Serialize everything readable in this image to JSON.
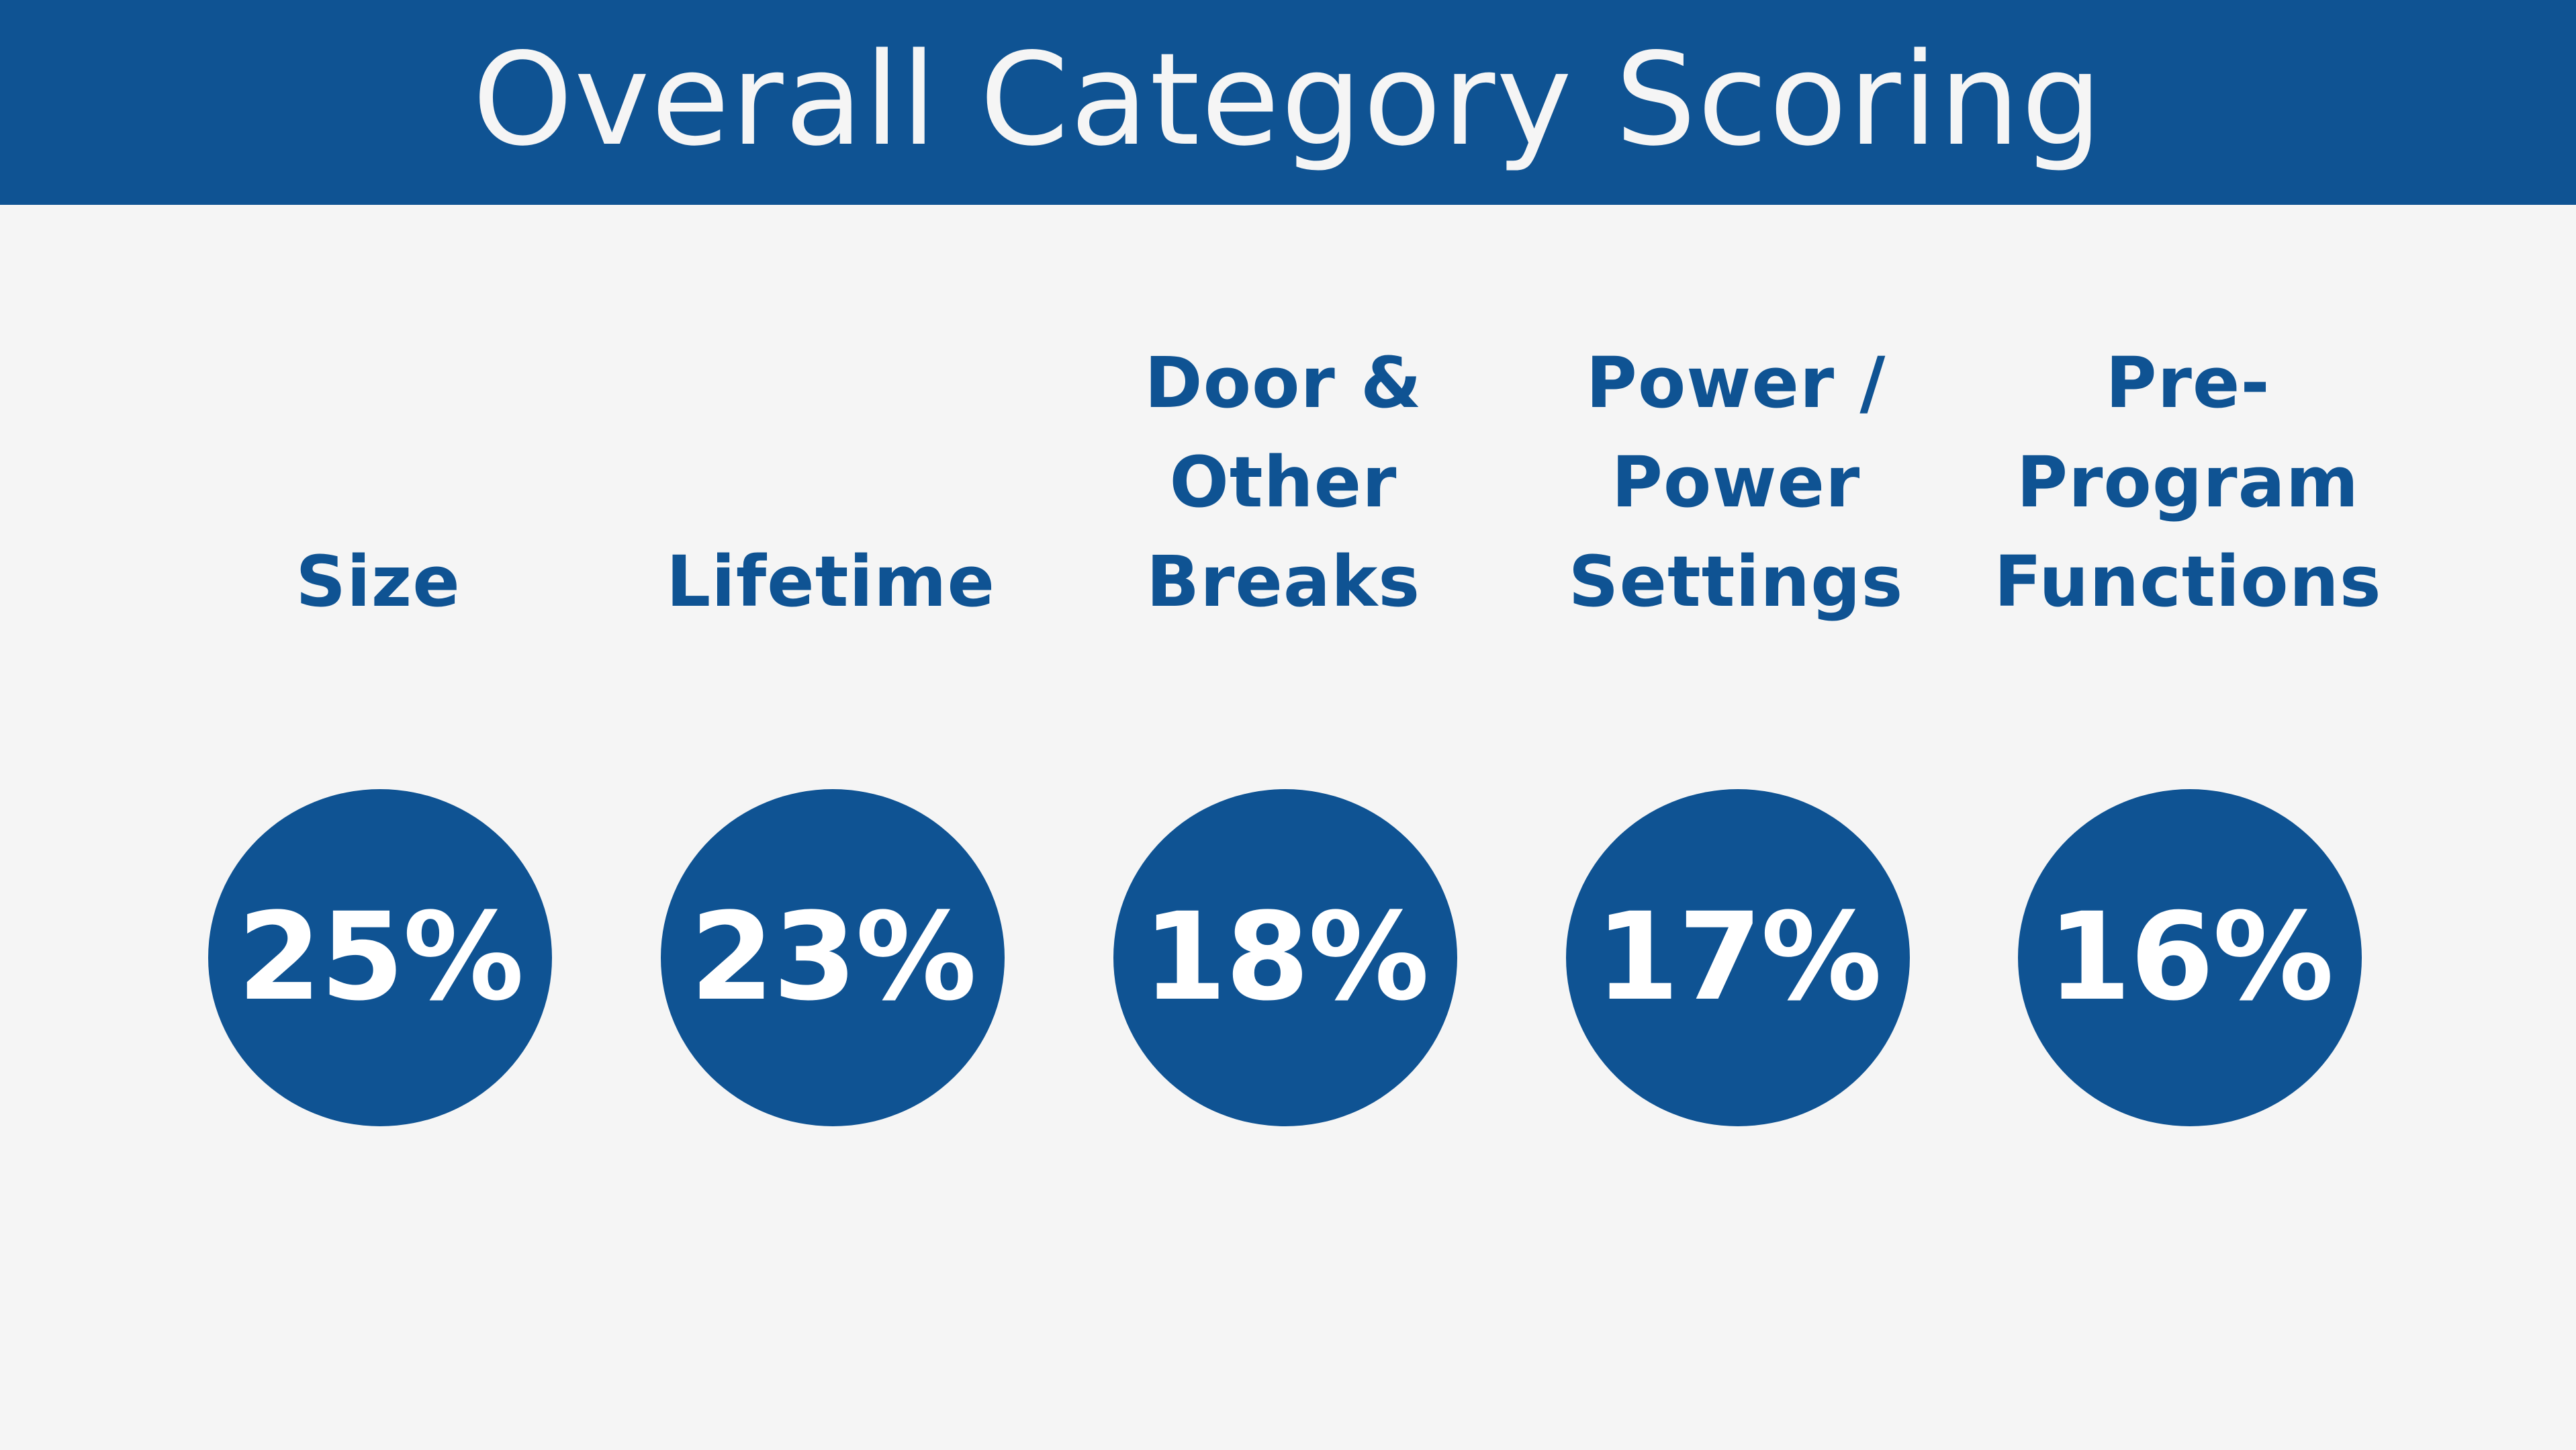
{
  "header": {
    "title": "Overall Category Scoring"
  },
  "colors": {
    "brand_blue": "#0f5393",
    "background": "#f5f5f5",
    "percent_text": "#ffffff"
  },
  "categories": [
    {
      "label": "Size",
      "percent": "25%"
    },
    {
      "label": "Lifetime",
      "percent": "23%"
    },
    {
      "label": "Door &\nOther\nBreaks",
      "percent": "18%"
    },
    {
      "label": "Power /\nPower\nSettings",
      "percent": "17%"
    },
    {
      "label": "Pre-\nProgram\nFunctions",
      "percent": "16%"
    }
  ]
}
